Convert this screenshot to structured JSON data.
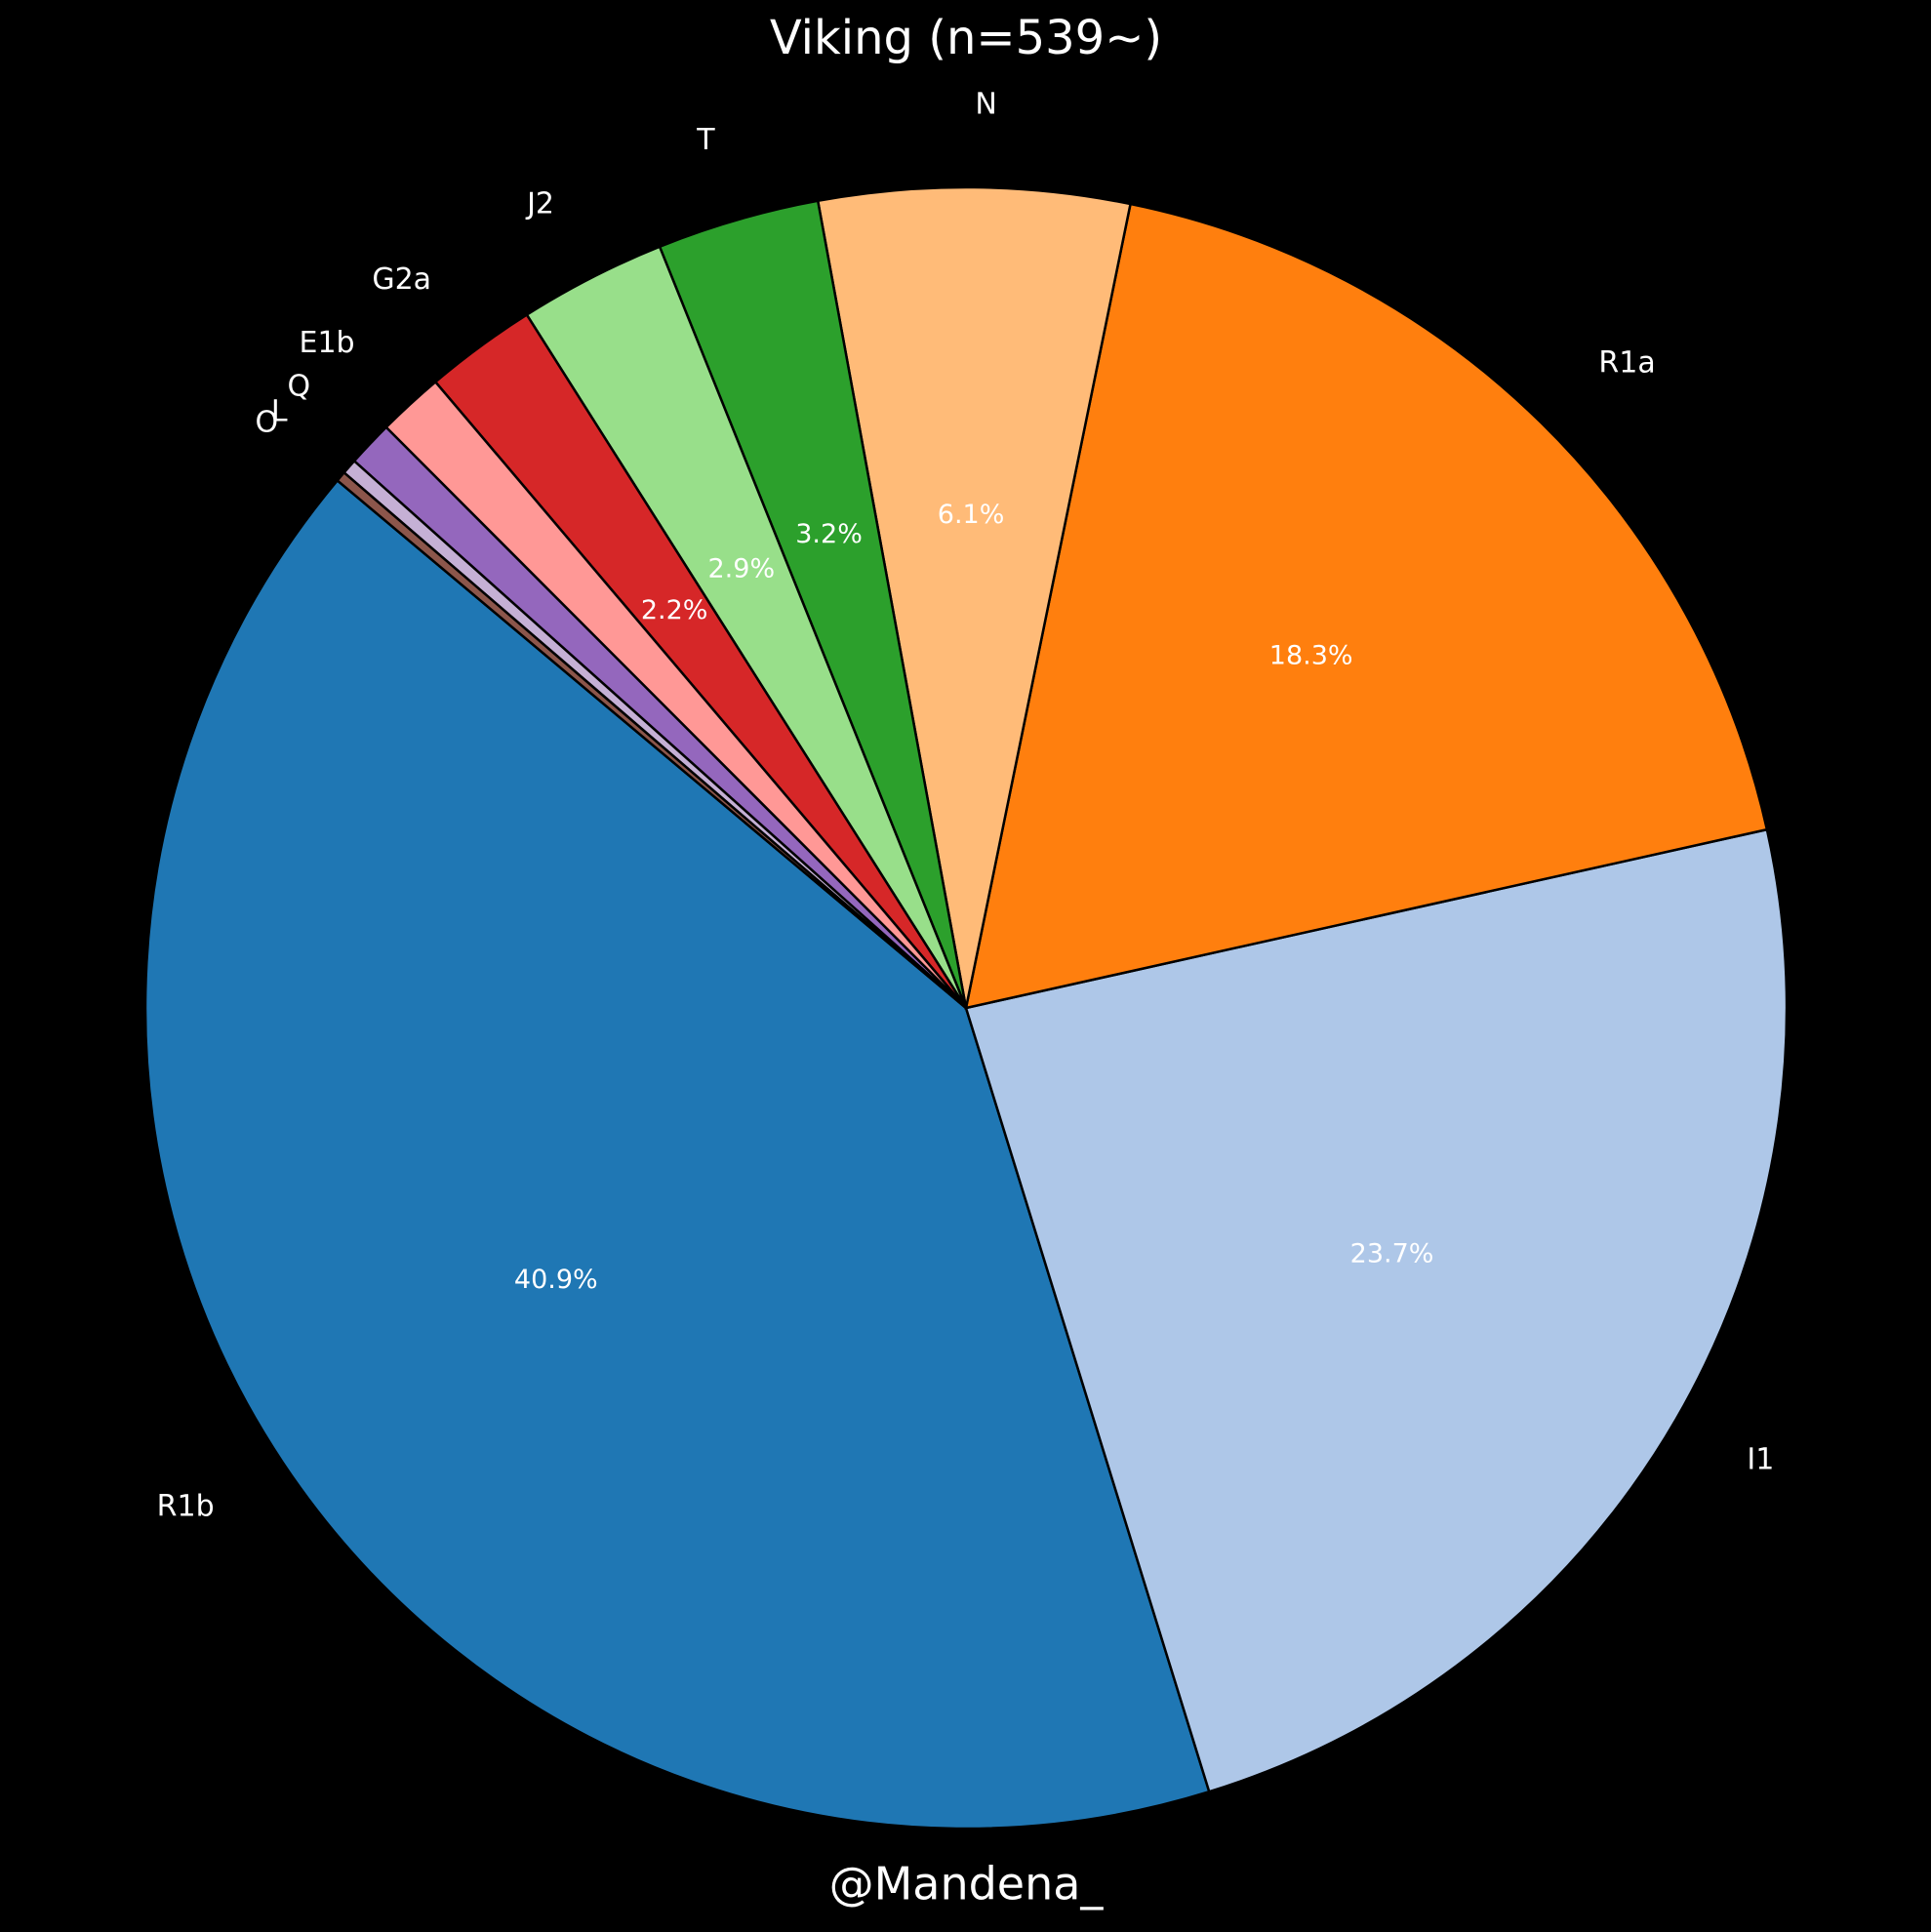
{
  "chart_data": {
    "type": "pie",
    "title": "Viking (n=539~)",
    "annotation": "@Mandena_",
    "categories": [
      "R1b",
      "I1",
      "R1a",
      "N",
      "T",
      "J2",
      "G2a",
      "E1b",
      "Q",
      "L",
      "O"
    ],
    "values": [
      40.9,
      23.7,
      18.3,
      6.1,
      3.2,
      2.9,
      2.2,
      1.3,
      0.9,
      0.3,
      0.2
    ],
    "value_labels": [
      "40.9%",
      "23.7%",
      "18.3%",
      "6.1%",
      "3.2%",
      "2.9%",
      "2.2%",
      null,
      null,
      null,
      null
    ],
    "colors": [
      "#1f77b4",
      "#aec7e8",
      "#ff7f0e",
      "#ffbb78",
      "#2ca02c",
      "#98df8a",
      "#d62728",
      "#ff9896",
      "#9467bd",
      "#c5b0d5",
      "#8c564b"
    ]
  }
}
